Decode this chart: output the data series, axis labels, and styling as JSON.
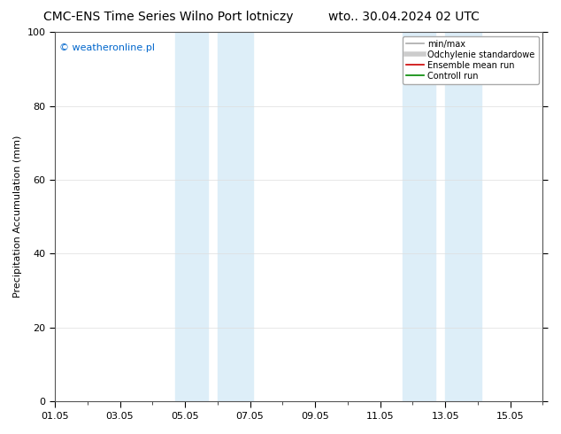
{
  "title": "CMC-ENS Time Series Wilno Port lotniczy",
  "title_date": "wto.. 30.04.2024 02 UTC",
  "ylabel": "Precipitation Accumulation (mm)",
  "ylim": [
    0,
    100
  ],
  "yticks": [
    0,
    20,
    40,
    60,
    80,
    100
  ],
  "xtick_labels": [
    "01.05",
    "03.05",
    "05.05",
    "07.05",
    "09.05",
    "11.05",
    "13.05",
    "15.05"
  ],
  "xtick_positions": [
    0,
    2,
    4,
    6,
    8,
    10,
    12,
    14
  ],
  "xlim": [
    0,
    15
  ],
  "shaded_bands": [
    {
      "x_start": 3.7,
      "x_end": 4.7,
      "color": "#ddeef8"
    },
    {
      "x_start": 5.0,
      "x_end": 6.1,
      "color": "#ddeef8"
    },
    {
      "x_start": 10.7,
      "x_end": 11.7,
      "color": "#ddeef8"
    },
    {
      "x_start": 12.0,
      "x_end": 13.1,
      "color": "#ddeef8"
    }
  ],
  "watermark": "© weatheronline.pl",
  "watermark_color": "#0066cc",
  "legend_items": [
    {
      "label": "min/max",
      "color": "#aaaaaa",
      "lw": 1.2
    },
    {
      "label": "Odchylenie standardowe",
      "color": "#cccccc",
      "lw": 4
    },
    {
      "label": "Ensemble mean run",
      "color": "#cc0000",
      "lw": 1.2
    },
    {
      "label": "Controll run",
      "color": "#008800",
      "lw": 1.2
    }
  ],
  "background_color": "#ffffff",
  "plot_bg_color": "#ffffff",
  "grid_color": "#dddddd",
  "title_fontsize": 10,
  "label_fontsize": 8,
  "tick_fontsize": 8
}
